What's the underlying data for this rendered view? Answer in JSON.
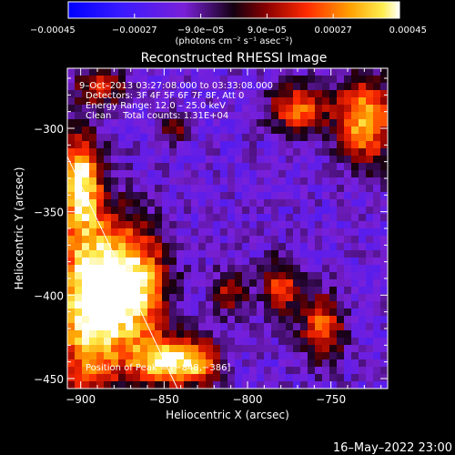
{
  "chart_data": {
    "type": "heatmap",
    "title": "Reconstructed RHESSI Image",
    "xlabel": "Heliocentric X (arcsec)",
    "ylabel": "Heliocentric Y (arcsec)",
    "xlim": [
      -908,
      -716
    ],
    "ylim": [
      -456,
      -264
    ],
    "xticks": [
      -900,
      -850,
      -800,
      -750
    ],
    "yticks": [
      -450,
      -400,
      -350,
      -300
    ],
    "xtick_labels": [
      "−900",
      "−850",
      "−800",
      "−750"
    ],
    "ytick_labels": [
      "−450",
      "−400",
      "−350",
      "−300"
    ],
    "colorbar": {
      "range": [
        -0.00045,
        0.00045
      ],
      "ticks": [
        -0.00045,
        -0.00027,
        -9e-05,
        9e-05,
        0.00027,
        0.00045
      ],
      "tick_labels": [
        "−0.00045",
        "−0.00027",
        "−9.0e−05",
        "9.0e−05",
        "0.00027",
        "0.00045"
      ],
      "units": "(photons cm⁻² s⁻¹ asec⁻²)"
    },
    "annotations": [
      "9–Oct–2013 03:27:08.000 to 03:33:08.000",
      "Detectors: 3F 4F 5F 6F 7F 8F, Att 0",
      "Energy Range: 12.0 – 25.0 keV",
      "Clean    Total counts: 1.31E+04"
    ],
    "peak_label": "Position of Peak = [−848,−386]",
    "peak": [
      -848,
      -386
    ],
    "limb_line": [
      [
        -908,
        -317
      ],
      [
        -842,
        -456
      ]
    ],
    "hot_regions": [
      {
        "x": -895,
        "y": -405,
        "sx": 15,
        "sy": 40,
        "a": 1.1
      },
      {
        "x": -868,
        "y": -395,
        "sx": 14,
        "sy": 25,
        "a": 1.0
      },
      {
        "x": -852,
        "y": -440,
        "sx": 12,
        "sy": 10,
        "a": 0.9
      },
      {
        "x": -830,
        "y": -440,
        "sx": 10,
        "sy": 10,
        "a": 0.8
      },
      {
        "x": -900,
        "y": -330,
        "sx": 8,
        "sy": 20,
        "a": 0.9
      },
      {
        "x": -730,
        "y": -295,
        "sx": 12,
        "sy": 18,
        "a": 0.9
      },
      {
        "x": -770,
        "y": -288,
        "sx": 12,
        "sy": 10,
        "a": 0.7
      },
      {
        "x": -755,
        "y": -420,
        "sx": 9,
        "sy": 14,
        "a": 0.7
      },
      {
        "x": -780,
        "y": -395,
        "sx": 8,
        "sy": 12,
        "a": 0.6
      },
      {
        "x": -810,
        "y": -398,
        "sx": 7,
        "sy": 10,
        "a": 0.5
      },
      {
        "x": -888,
        "y": -275,
        "sx": 10,
        "sy": 8,
        "a": 0.6
      },
      {
        "x": -842,
        "y": -300,
        "sx": 6,
        "sy": 6,
        "a": 0.5
      }
    ],
    "grid": false
  },
  "footer_date": "16–May–2022 23:00"
}
